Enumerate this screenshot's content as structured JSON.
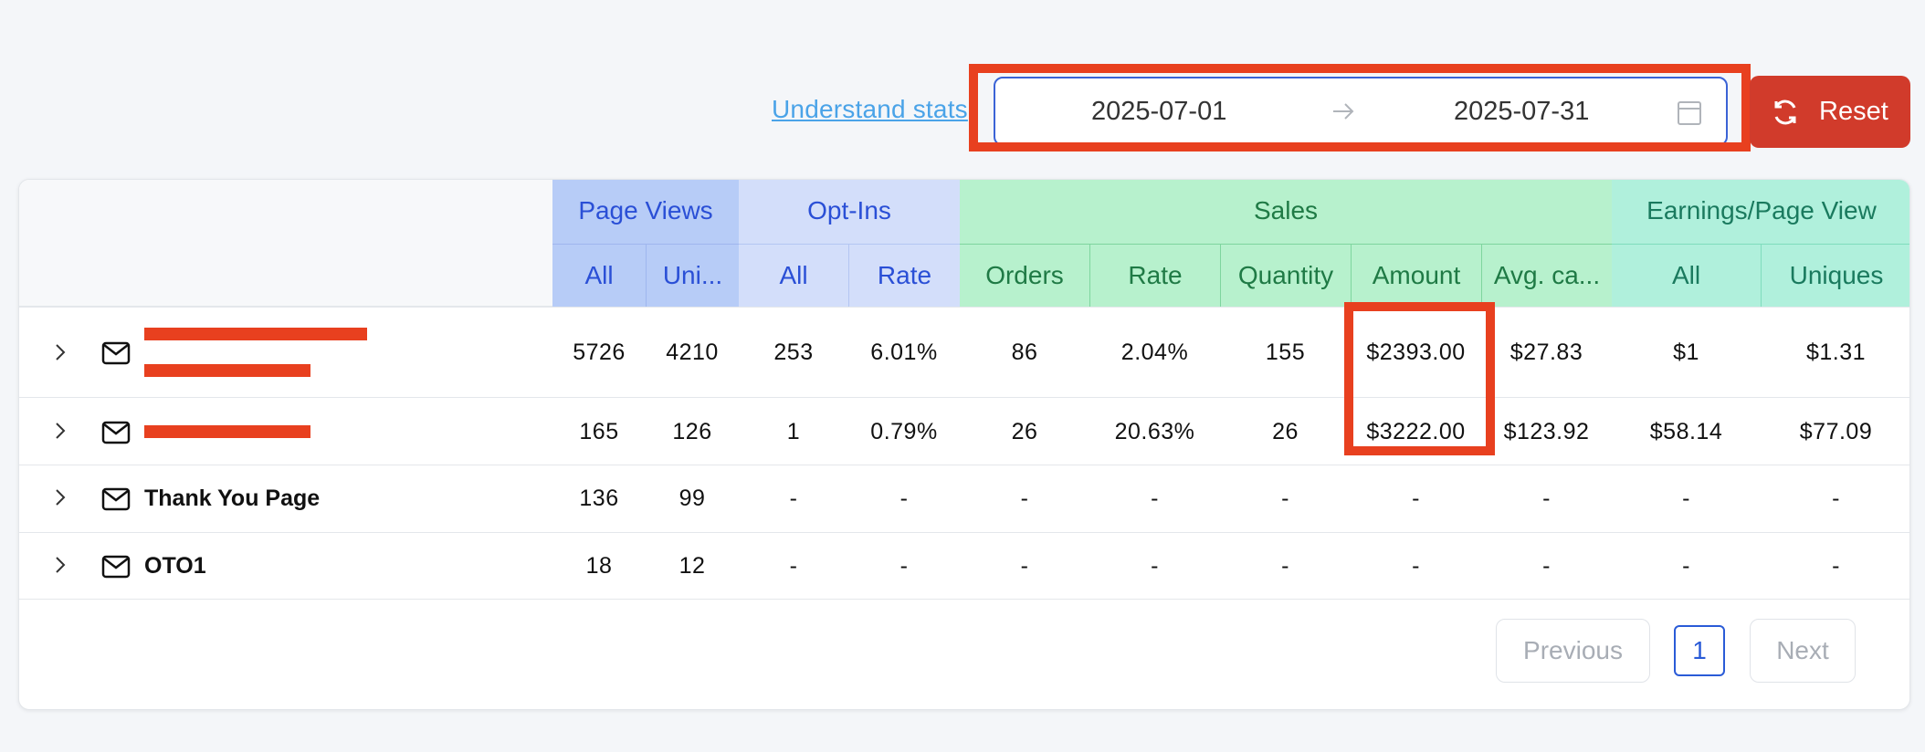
{
  "toolbar": {
    "understand_link": "Understand stats",
    "start_date": "2025-07-01",
    "end_date": "2025-07-31",
    "reset_label": "Reset"
  },
  "table": {
    "groups": [
      "Page Views",
      "Opt-Ins",
      "Sales",
      "Earnings/Page View"
    ],
    "columns": [
      "All",
      "Uni...",
      "All",
      "Rate",
      "Orders",
      "Rate",
      "Quantity",
      "Amount",
      "Avg. ca...",
      "All",
      "Uniques"
    ],
    "rows": [
      {
        "name": "",
        "values": [
          "5726",
          "4210",
          "253",
          "6.01%",
          "86",
          "2.04%",
          "155",
          "$2393.00",
          "$27.83",
          "$1",
          "$1.31"
        ]
      },
      {
        "name": "",
        "values": [
          "165",
          "126",
          "1",
          "0.79%",
          "26",
          "20.63%",
          "26",
          "$3222.00",
          "$123.92",
          "$58.14",
          "$77.09"
        ]
      },
      {
        "name": "Thank You Page",
        "values": [
          "136",
          "99",
          "-",
          "-",
          "-",
          "-",
          "-",
          "-",
          "-",
          "-",
          "-"
        ]
      },
      {
        "name": "OTO1",
        "values": [
          "18",
          "12",
          "-",
          "-",
          "-",
          "-",
          "-",
          "-",
          "-",
          "-",
          "-"
        ]
      }
    ]
  },
  "pagination": {
    "previous_label": "Previous",
    "current_page": "1",
    "next_label": "Next"
  },
  "colors": {
    "highlight": "#e8401f",
    "reset_button": "#d13b2b",
    "page_views_header": "#b7ccf7",
    "optins_header": "#d3defa",
    "sales_header": "#b7f1cd",
    "earnings_header": "#b0f0dc"
  },
  "icons": [
    "refresh-icon",
    "arrow-right-icon",
    "calendar-icon",
    "chevron-right-icon",
    "mail-icon"
  ]
}
